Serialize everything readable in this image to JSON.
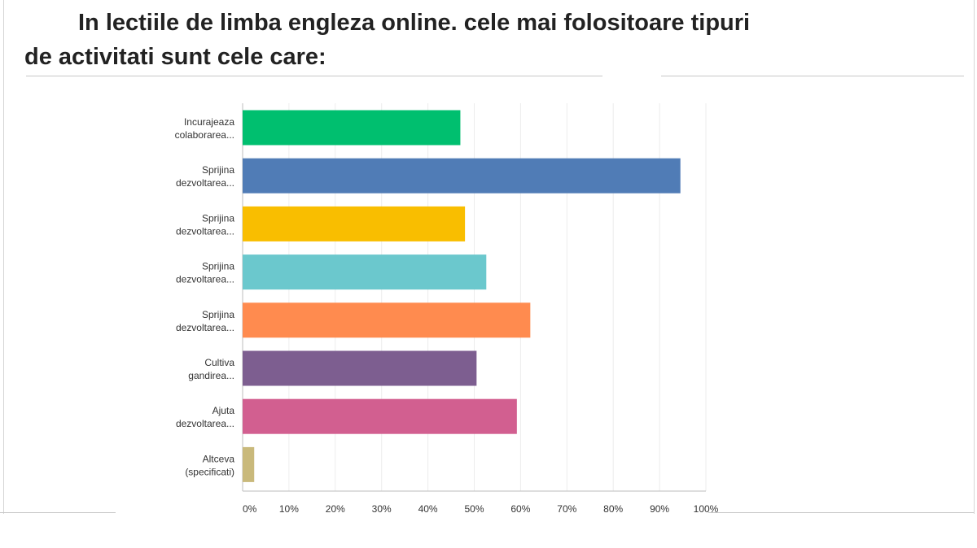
{
  "slide": {
    "title_line1": "In lectiile de limba engleza online. cele mai folositoare tipuri",
    "title_line2": "de activitati sunt cele care:"
  },
  "chart_data": {
    "type": "bar",
    "orientation": "horizontal",
    "categories": [
      [
        "Incurajeaza",
        "colaborarea..."
      ],
      [
        "Sprijina",
        "dezvoltarea..."
      ],
      [
        "Sprijina",
        "dezvoltarea..."
      ],
      [
        "Sprijina",
        "dezvoltarea..."
      ],
      [
        "Sprijina",
        "dezvoltarea..."
      ],
      [
        "Cultiva",
        "gandirea..."
      ],
      [
        "Ajuta",
        "dezvoltarea..."
      ],
      [
        "Altceva",
        "(specificati)"
      ]
    ],
    "values": [
      47,
      94.5,
      48,
      52.6,
      62.1,
      50.5,
      59.2,
      2.5
    ],
    "colors": [
      "#00bf6f",
      "#507cb6",
      "#f9be00",
      "#6bc8cd",
      "#ff8b4f",
      "#7d5e90",
      "#d25f90",
      "#c9b97b"
    ],
    "xlim": [
      0,
      100
    ],
    "xticks": [
      "0%",
      "10%",
      "20%",
      "30%",
      "40%",
      "50%",
      "60%",
      "70%",
      "80%",
      "90%",
      "100%"
    ],
    "grid": true,
    "xlabel": "",
    "ylabel": ""
  }
}
